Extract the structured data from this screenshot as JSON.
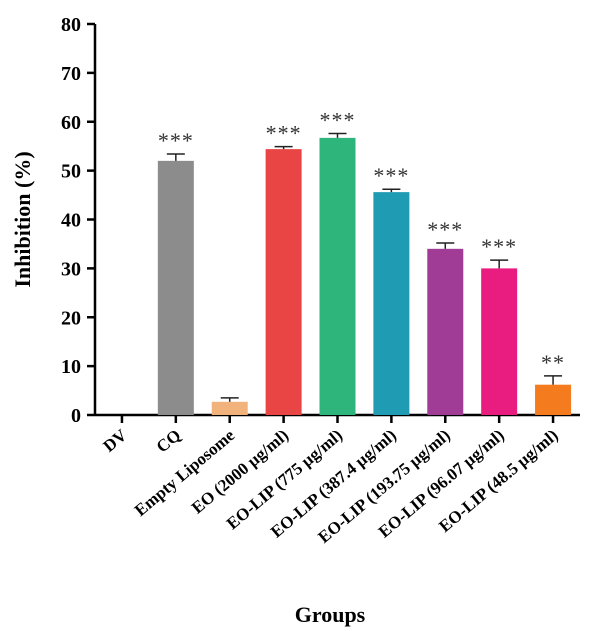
{
  "chart_data": {
    "type": "bar",
    "xlabel": "Groups",
    "ylabel": "Inhibition (%)",
    "ylim": [
      0,
      80
    ],
    "yticks": [
      0,
      10,
      20,
      30,
      40,
      50,
      60,
      70,
      80
    ],
    "grid": false,
    "categories": [
      "DV",
      "CQ",
      "Empty Liposome",
      "EO (2000 µg/ml)",
      "EO-LIP (775 µg/ml)",
      "EO-LIP (387.4 µg/ml)",
      "EO-LIP (193.75 µg/ml)",
      "EO-LIP (96.07 µg/ml)",
      "EO-LIP (48.5 µg/ml)"
    ],
    "values": [
      0,
      52,
      2.7,
      54.4,
      56.7,
      45.6,
      34,
      30,
      6.2
    ],
    "errors": [
      0,
      1.4,
      0.8,
      0.5,
      0.9,
      0.6,
      1.2,
      1.7,
      1.8
    ],
    "significance": [
      "",
      "***",
      "",
      "***",
      "***",
      "***",
      "***",
      "***",
      "**"
    ],
    "colors": [
      "#9a9a9a",
      "#8c8c8c",
      "#f2b27c",
      "#e94545",
      "#2db57c",
      "#1f9bb3",
      "#a03c95",
      "#e91c80",
      "#f47c1e"
    ]
  }
}
